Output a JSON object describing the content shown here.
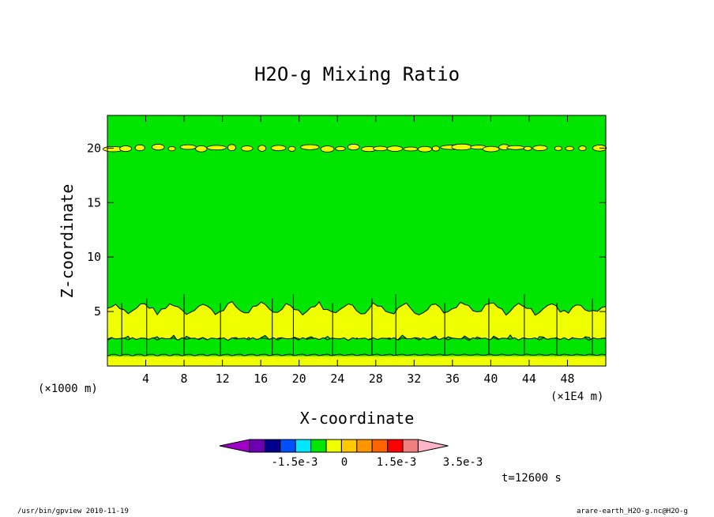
{
  "chart_data": {
    "type": "heatmap",
    "title": "H2O-g Mixing Ratio",
    "xlabel": "X-coordinate",
    "ylabel": "Z-coordinate",
    "x_unit": "(×1000 m)",
    "x_unit_right": "(×1E4 m)",
    "xlim": [
      0,
      52
    ],
    "ylim": [
      0,
      23
    ],
    "x_ticks": [
      4,
      8,
      12,
      16,
      20,
      24,
      28,
      32,
      36,
      40,
      44,
      48
    ],
    "y_ticks": [
      5,
      10,
      15,
      20
    ],
    "time_label": "t=12600 s",
    "colorbar": {
      "labels": [
        "-1.5e-3",
        "0",
        "1.5e-3",
        "3.5e-3"
      ],
      "colors": [
        "#a000c8",
        "#6e00b4",
        "#00008c",
        "#0050ff",
        "#00e6ff",
        "#00e600",
        "#f0ff00",
        "#ffc800",
        "#ff9600",
        "#ff6400",
        "#ff0000",
        "#f08080",
        "#ffb4c8"
      ]
    },
    "layers": [
      {
        "z_range": [
          0,
          0.9
        ],
        "value_class": "0 to 1.5e-3",
        "color": "#f0ff00"
      },
      {
        "z_range": [
          0.9,
          2.5
        ],
        "value_class": "-0.5e-3 to 0",
        "color": "#00e600"
      },
      {
        "z_range": [
          2.5,
          5.5
        ],
        "value_class": "0 to 1.5e-3",
        "color": "#f0ff00"
      },
      {
        "z_range": [
          5.5,
          23
        ],
        "value_class": "-0.5e-3 to 0",
        "color": "#00e600"
      },
      {
        "z_range": [
          19.7,
          20.3
        ],
        "value_class": "0 to 1.5e-3 (patchy)",
        "color": "#f0ff00"
      }
    ]
  },
  "footer": {
    "left": "/usr/bin/gpview   2010-11-19",
    "right": "arare-earth_H2O-g.nc@H2O-g"
  }
}
